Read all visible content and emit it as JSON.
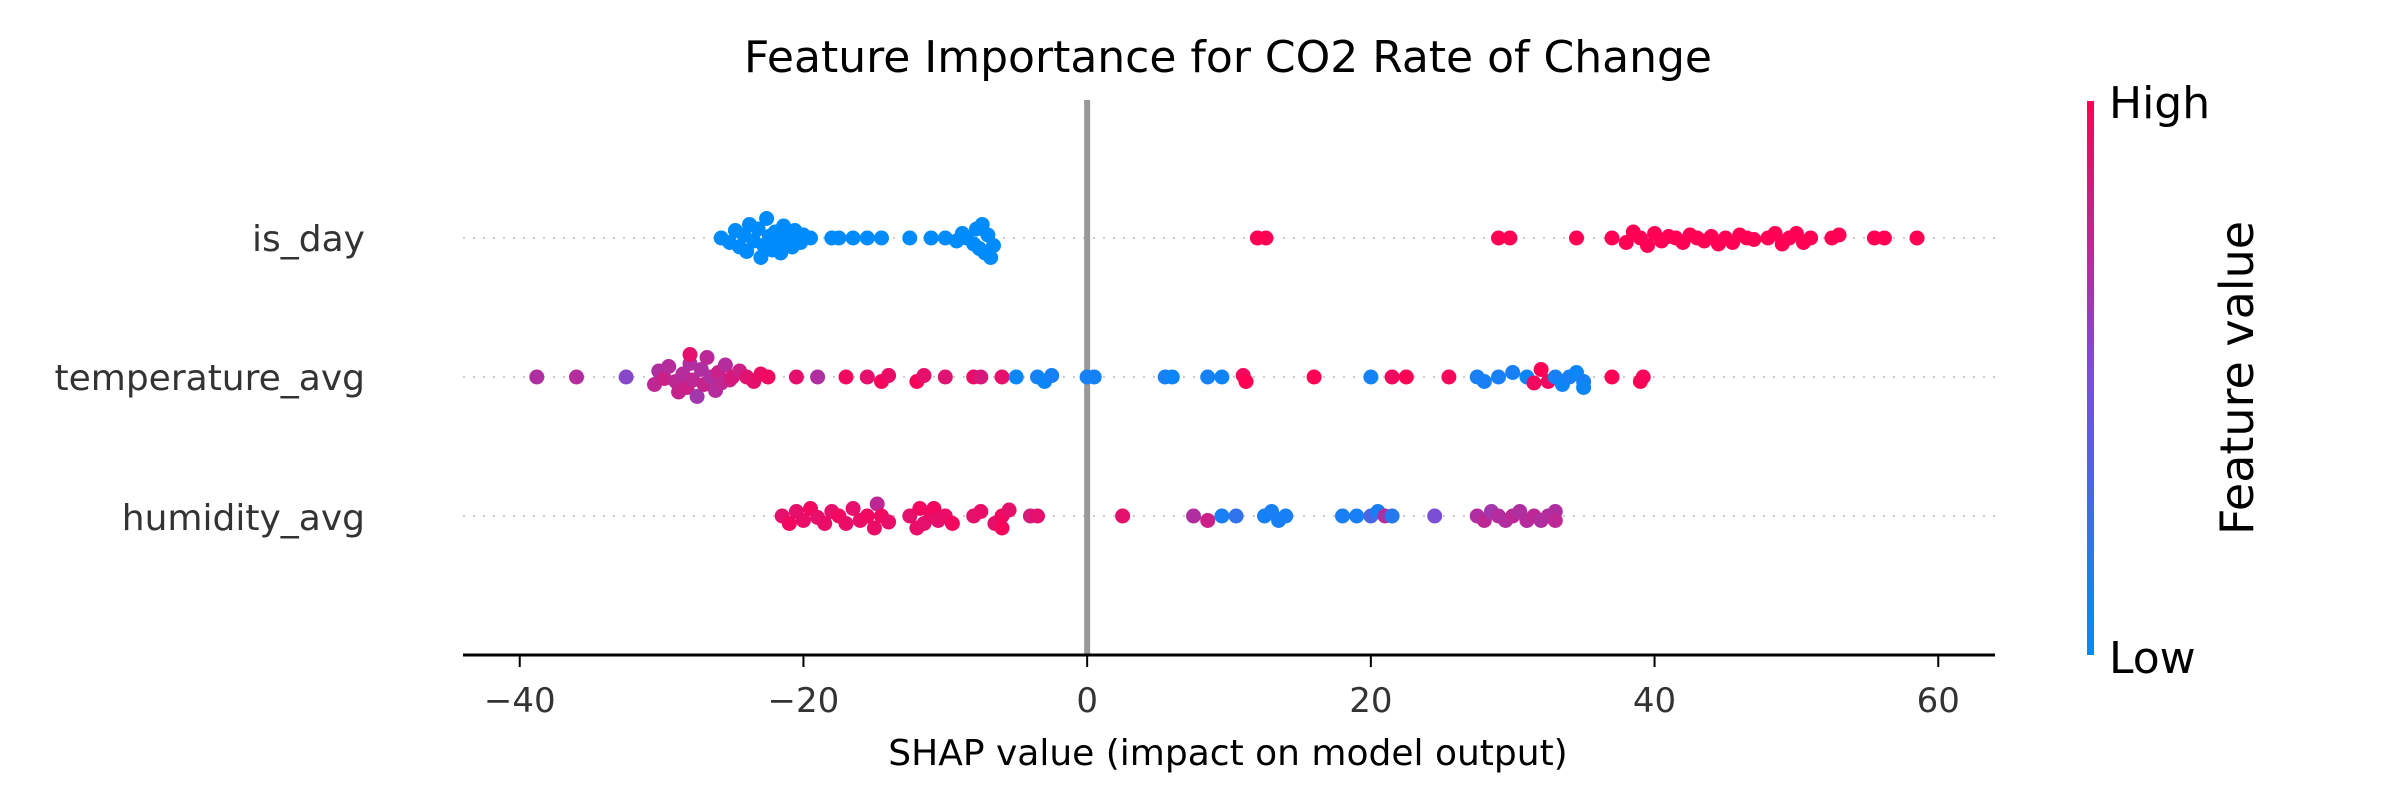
{
  "chart_data": {
    "type": "scatter",
    "title": "Feature Importance for CO2 Rate of Change",
    "xlabel": "SHAP value (impact on model output)",
    "xlim": [
      -44,
      64
    ],
    "xticks": [
      -40,
      -20,
      0,
      20,
      40,
      60
    ],
    "xtick_labels": [
      "−40",
      "−20",
      "0",
      "20",
      "40",
      "60"
    ],
    "features": [
      "is_day",
      "temperature_avg",
      "humidity_avg"
    ],
    "colorbar": {
      "label": "Feature value",
      "high_label": "High",
      "low_label": "Low",
      "high_color": "#ff0052",
      "low_color": "#008bfb"
    },
    "zero_line_color": "#999999",
    "series": [
      {
        "feature": "is_day",
        "points": [
          [
            -25.8,
            0.0,
            0
          ],
          [
            -25.2,
            0.3,
            0
          ],
          [
            -24.8,
            -0.5,
            0
          ],
          [
            -24.5,
            0.6,
            0
          ],
          [
            -24.2,
            -0.2,
            0
          ],
          [
            -24.0,
            0.9,
            0
          ],
          [
            -23.8,
            -0.9,
            0
          ],
          [
            -23.5,
            0.2,
            0
          ],
          [
            -23.2,
            -0.6,
            0
          ],
          [
            -23.0,
            1.3,
            0
          ],
          [
            -22.8,
            0.5,
            0
          ],
          [
            -22.6,
            -1.3,
            0
          ],
          [
            -22.4,
            -0.1,
            0
          ],
          [
            -22.2,
            0.8,
            0
          ],
          [
            -22.0,
            -0.4,
            0
          ],
          [
            -21.8,
            0.2,
            0
          ],
          [
            -21.6,
            1.0,
            0
          ],
          [
            -21.4,
            -0.8,
            0
          ],
          [
            -21.2,
            0.4,
            0
          ],
          [
            -21.0,
            -0.2,
            0
          ],
          [
            -20.8,
            0.6,
            0
          ],
          [
            -20.6,
            -0.5,
            0
          ],
          [
            -20.4,
            0.1,
            0
          ],
          [
            -20.2,
            0.3,
            0
          ],
          [
            -20.0,
            -0.2,
            0
          ],
          [
            -19.5,
            0.0,
            0
          ],
          [
            -18.0,
            0.0,
            0
          ],
          [
            -17.5,
            0.0,
            0
          ],
          [
            -16.5,
            0.0,
            0
          ],
          [
            -15.5,
            0.0,
            0
          ],
          [
            -14.5,
            0.0,
            0
          ],
          [
            -12.5,
            0.0,
            0
          ],
          [
            -11.0,
            0.0,
            0
          ],
          [
            -10.0,
            0.0,
            0
          ],
          [
            -9.2,
            0.2,
            0
          ],
          [
            -8.8,
            -0.3,
            0
          ],
          [
            -8.5,
            0.0,
            0
          ],
          [
            -8.0,
            0.4,
            0
          ],
          [
            -7.8,
            -0.6,
            0
          ],
          [
            -7.6,
            0.7,
            0
          ],
          [
            -7.4,
            -0.9,
            0
          ],
          [
            -7.2,
            1.0,
            0
          ],
          [
            -7.0,
            -0.2,
            0
          ],
          [
            -6.8,
            1.3,
            0
          ],
          [
            -6.6,
            0.5,
            0
          ],
          [
            12.0,
            0.0,
            1
          ],
          [
            12.6,
            0.0,
            1
          ],
          [
            29.0,
            0.0,
            1
          ],
          [
            29.8,
            0.0,
            1
          ],
          [
            34.5,
            0.0,
            1
          ],
          [
            37.0,
            0.0,
            1
          ],
          [
            38.0,
            0.3,
            1
          ],
          [
            38.5,
            -0.4,
            1
          ],
          [
            39.0,
            0.0,
            1
          ],
          [
            39.5,
            0.5,
            1
          ],
          [
            40.0,
            -0.3,
            1
          ],
          [
            40.5,
            0.2,
            1
          ],
          [
            41.0,
            -0.1,
            1
          ],
          [
            41.5,
            0.0,
            1
          ],
          [
            42.0,
            0.3,
            1
          ],
          [
            42.5,
            -0.2,
            1
          ],
          [
            43.0,
            0.0,
            1
          ],
          [
            43.5,
            0.2,
            1
          ],
          [
            44.0,
            -0.1,
            1
          ],
          [
            44.5,
            0.4,
            1
          ],
          [
            45.0,
            0.0,
            1
          ],
          [
            45.5,
            0.3,
            1
          ],
          [
            46.0,
            -0.2,
            1
          ],
          [
            46.5,
            0.0,
            1
          ],
          [
            47.0,
            0.1,
            1
          ],
          [
            48.0,
            0.0,
            1
          ],
          [
            48.5,
            -0.3,
            1
          ],
          [
            49.0,
            0.4,
            1
          ],
          [
            49.5,
            0.0,
            1
          ],
          [
            50.0,
            -0.3,
            1
          ],
          [
            50.5,
            0.3,
            1
          ],
          [
            51.0,
            0.0,
            1
          ],
          [
            52.5,
            0.0,
            1
          ],
          [
            53.0,
            -0.2,
            1
          ],
          [
            55.5,
            0.0,
            1
          ],
          [
            56.2,
            0.0,
            1
          ],
          [
            58.5,
            0.0,
            1
          ]
        ]
      },
      {
        "feature": "temperature_avg",
        "points": [
          [
            -38.8,
            0.0,
            0.7
          ],
          [
            -36.0,
            0.0,
            0.72
          ],
          [
            -32.5,
            0.0,
            0.55
          ],
          [
            -30.5,
            0.5,
            0.75
          ],
          [
            -30.2,
            -0.4,
            0.7
          ],
          [
            -29.8,
            0.1,
            0.8
          ],
          [
            -29.5,
            -0.7,
            0.72
          ],
          [
            -29.0,
            0.3,
            0.75
          ],
          [
            -28.8,
            1.0,
            0.78
          ],
          [
            -28.5,
            -0.2,
            0.72
          ],
          [
            -28.2,
            0.7,
            0.8
          ],
          [
            -28.0,
            -0.9,
            0.7
          ],
          [
            -27.8,
            0.2,
            0.75
          ],
          [
            -27.5,
            1.3,
            0.65
          ],
          [
            -27.2,
            -0.5,
            0.7
          ],
          [
            -27.0,
            0.5,
            0.78
          ],
          [
            -26.8,
            -1.3,
            0.74
          ],
          [
            -26.5,
            0.0,
            0.7
          ],
          [
            -26.2,
            0.9,
            0.72
          ],
          [
            -26.0,
            -0.3,
            0.8
          ],
          [
            -25.8,
            0.4,
            0.75
          ],
          [
            -25.5,
            -0.8,
            0.72
          ],
          [
            -25.2,
            0.2,
            0.8
          ],
          [
            -25.0,
            0.0,
            0.85
          ],
          [
            -24.5,
            -0.4,
            0.8
          ],
          [
            -24.0,
            0.0,
            0.88
          ],
          [
            -23.5,
            0.3,
            0.9
          ],
          [
            -23.0,
            -0.2,
            0.92
          ],
          [
            -22.5,
            0.0,
            0.95
          ],
          [
            -28.0,
            -1.5,
            0.9
          ],
          [
            -20.5,
            0.0,
            0.9
          ],
          [
            -19.0,
            0.0,
            0.7
          ],
          [
            -17.0,
            0.0,
            0.95
          ],
          [
            -15.5,
            0.0,
            0.9
          ],
          [
            -14.5,
            0.3,
            0.97
          ],
          [
            -14.0,
            -0.1,
            0.92
          ],
          [
            -12.0,
            0.3,
            0.97
          ],
          [
            -11.5,
            -0.1,
            0.9
          ],
          [
            -10.0,
            0.0,
            0.88
          ],
          [
            -8.0,
            0.0,
            0.92
          ],
          [
            -7.5,
            0.0,
            0.85
          ],
          [
            -6.0,
            0.0,
            0.9
          ],
          [
            -5.0,
            0.0,
            0.05
          ],
          [
            -3.5,
            0.0,
            0.08
          ],
          [
            -3.0,
            0.3,
            0.05
          ],
          [
            -2.5,
            -0.1,
            0.1
          ],
          [
            0.0,
            0.0,
            0.1
          ],
          [
            0.5,
            0.0,
            0.08
          ],
          [
            5.5,
            0.0,
            0.1
          ],
          [
            6.0,
            0.0,
            0.05
          ],
          [
            8.5,
            0.0,
            0.08
          ],
          [
            9.5,
            0.0,
            0.06
          ],
          [
            11.0,
            -0.1,
            0.95
          ],
          [
            11.2,
            0.3,
            1
          ],
          [
            16.0,
            0.0,
            1
          ],
          [
            20.0,
            0.0,
            0.08
          ],
          [
            21.5,
            0.0,
            0.95
          ],
          [
            22.5,
            0.0,
            1
          ],
          [
            25.5,
            0.0,
            0.97
          ],
          [
            27.5,
            0.0,
            0.1
          ],
          [
            28.0,
            0.3,
            0.1
          ],
          [
            29.0,
            0.0,
            0.1
          ],
          [
            30.0,
            -0.3,
            0.1
          ],
          [
            31.0,
            0.0,
            0.05
          ],
          [
            31.5,
            0.4,
            0.95
          ],
          [
            32.0,
            -0.5,
            1
          ],
          [
            32.5,
            0.3,
            0.95
          ],
          [
            33.0,
            0.0,
            0.1
          ],
          [
            33.5,
            0.5,
            0.05
          ],
          [
            34.0,
            0.0,
            0.1
          ],
          [
            34.5,
            -0.3,
            0.05
          ],
          [
            35.0,
            0.3,
            0.1
          ],
          [
            35.0,
            0.7,
            0.05
          ],
          [
            37.0,
            0.0,
            1
          ],
          [
            39.0,
            0.3,
            1
          ],
          [
            39.2,
            0.0,
            0.97
          ]
        ]
      },
      {
        "feature": "humidity_avg",
        "points": [
          [
            -21.5,
            0.0,
            0.9
          ],
          [
            -21.0,
            0.5,
            0.95
          ],
          [
            -20.5,
            -0.3,
            0.9
          ],
          [
            -20.0,
            0.3,
            0.92
          ],
          [
            -19.5,
            -0.5,
            0.95
          ],
          [
            -19.0,
            0.1,
            0.9
          ],
          [
            -18.5,
            0.5,
            0.92
          ],
          [
            -18.0,
            -0.3,
            0.9
          ],
          [
            -17.5,
            0.0,
            0.95
          ],
          [
            -17.0,
            0.5,
            0.92
          ],
          [
            -16.5,
            -0.5,
            0.9
          ],
          [
            -16.0,
            0.3,
            0.92
          ],
          [
            -15.5,
            0.0,
            0.95
          ],
          [
            -15.0,
            0.8,
            0.92
          ],
          [
            -14.8,
            -0.8,
            0.75
          ],
          [
            -14.5,
            0.0,
            0.95
          ],
          [
            -14.0,
            0.4,
            0.92
          ],
          [
            -12.5,
            0.0,
            0.9
          ],
          [
            -12.0,
            0.8,
            0.92
          ],
          [
            -11.8,
            -0.5,
            0.95
          ],
          [
            -11.5,
            0.5,
            0.9
          ],
          [
            -11.0,
            0.0,
            0.92
          ],
          [
            -10.8,
            -0.5,
            0.95
          ],
          [
            -10.5,
            0.3,
            0.9
          ],
          [
            -10.0,
            0.0,
            0.92
          ],
          [
            -9.5,
            0.5,
            0.95
          ],
          [
            -8.0,
            0.0,
            0.9
          ],
          [
            -7.5,
            -0.3,
            0.92
          ],
          [
            -6.5,
            0.5,
            0.9
          ],
          [
            -6.0,
            0.0,
            0.95
          ],
          [
            -6.0,
            0.8,
            0.97
          ],
          [
            -5.5,
            -0.4,
            0.9
          ],
          [
            -4.0,
            0.0,
            0.85
          ],
          [
            -3.5,
            0.0,
            0.9
          ],
          [
            2.5,
            0.0,
            0.9
          ],
          [
            7.5,
            0.0,
            0.7
          ],
          [
            8.5,
            0.3,
            0.8
          ],
          [
            9.5,
            0.0,
            0.1
          ],
          [
            10.5,
            0.0,
            0.2
          ],
          [
            12.5,
            0.0,
            0.08
          ],
          [
            13.0,
            -0.3,
            0.1
          ],
          [
            13.5,
            0.3,
            0.1
          ],
          [
            14.0,
            0.0,
            0.1
          ],
          [
            18.0,
            0.0,
            0.1
          ],
          [
            19.0,
            0.0,
            0.1
          ],
          [
            20.0,
            0.0,
            0.3
          ],
          [
            20.5,
            -0.3,
            0.1
          ],
          [
            21.0,
            0.0,
            0.7
          ],
          [
            21.5,
            0.0,
            0.15
          ],
          [
            24.5,
            0.0,
            0.5
          ],
          [
            27.5,
            0.0,
            0.7
          ],
          [
            28.0,
            0.3,
            0.75
          ],
          [
            28.5,
            -0.3,
            0.65
          ],
          [
            29.0,
            0.0,
            0.72
          ],
          [
            29.5,
            0.3,
            0.7
          ],
          [
            30.0,
            0.0,
            0.75
          ],
          [
            30.5,
            -0.3,
            0.7
          ],
          [
            31.0,
            0.3,
            0.72
          ],
          [
            31.5,
            0.0,
            0.75
          ],
          [
            32.0,
            0.3,
            0.7
          ],
          [
            32.5,
            0.0,
            0.72
          ],
          [
            33.0,
            -0.3,
            0.7
          ],
          [
            33.0,
            0.3,
            0.75
          ]
        ]
      }
    ]
  }
}
